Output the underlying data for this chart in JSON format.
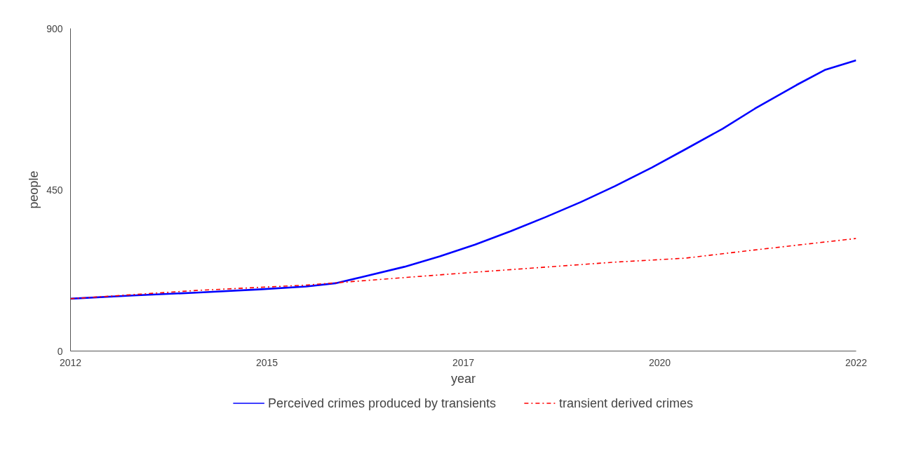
{
  "chart_data": {
    "type": "line",
    "xlabel": "year",
    "ylabel": "people",
    "xlim": [
      2012,
      2022
    ],
    "ylim": [
      0,
      900
    ],
    "xticks": [
      2012,
      {
        "value": 2014.5,
        "label": "2015"
      },
      2017,
      {
        "value": 2019.5,
        "label": "2020"
      },
      2022
    ],
    "yticks": [
      0,
      450,
      900
    ],
    "grid": false,
    "legend": "bottom",
    "marker": "none",
    "series": [
      {
        "name": "Perceived crimes produced by transients",
        "color": "#0000ff",
        "line_style": "solid",
        "x": [
          2012,
          2012.8,
          2013.6,
          2014.4,
          2015,
          2015.37,
          2015.7,
          2016.25,
          2016.7,
          2017.15,
          2017.6,
          2018.04,
          2018.5,
          2018.93,
          2019.4,
          2019.82,
          2020.3,
          2020.71,
          2021.24,
          2021.6,
          2022
        ],
        "values": [
          146,
          155,
          163,
          172,
          180,
          189,
          206,
          235,
          264,
          297,
          334,
          373,
          416,
          460,
          512,
          562,
          620,
          676,
          742,
          784,
          811
        ]
      },
      {
        "name": "transient derived crimes",
        "color": "#ff0000",
        "line_style": "dashdot",
        "x": [
          2012,
          2013.6,
          2015,
          2017.15,
          2018.93,
          2019.82,
          2020.71,
          2022
        ],
        "values": [
          146,
          169,
          184,
          220,
          248,
          259,
          282,
          314
        ]
      }
    ]
  }
}
